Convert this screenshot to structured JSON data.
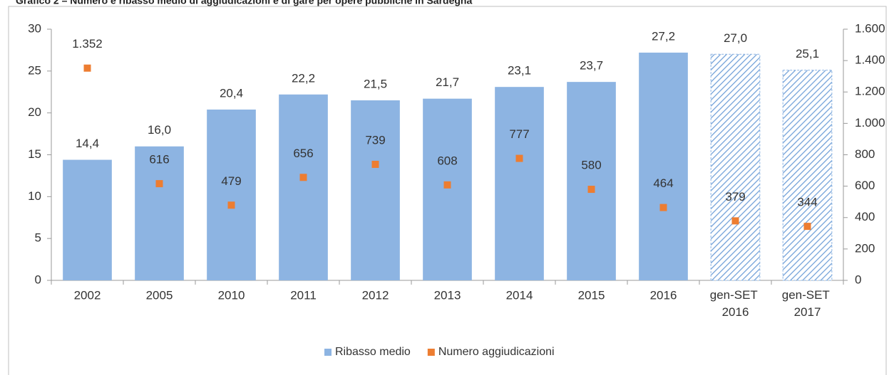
{
  "chart_data": {
    "type": "combo",
    "title": "Grafico 2 – Numero e ribasso medio di aggiudicazioni e di gare  per opere pubbliche in Sardegna",
    "categories": [
      "2002",
      "2005",
      "2010",
      "2011",
      "2012",
      "2013",
      "2014",
      "2015",
      "2016",
      "gen-SET 2016",
      "gen-SET 2017"
    ],
    "series": [
      {
        "name": "Ribasso medio",
        "type": "bar",
        "color": "#8db4e2",
        "values": [
          14.4,
          16.0,
          20.4,
          22.2,
          21.5,
          21.7,
          23.1,
          23.7,
          27.2,
          27.0,
          25.1
        ],
        "value_labels": [
          "14,4",
          "16,0",
          "20,4",
          "22,2",
          "21,5",
          "21,7",
          "23,1",
          "23,7",
          "27,2",
          "27,0",
          "25,1"
        ],
        "hatched": [
          false,
          false,
          false,
          false,
          false,
          false,
          false,
          false,
          false,
          true,
          true
        ]
      },
      {
        "name": "Numero aggiudicazioni",
        "type": "marker",
        "color": "#ed7d31",
        "axis": "y2",
        "values": [
          1352,
          616,
          479,
          656,
          739,
          608,
          777,
          580,
          464,
          379,
          344
        ],
        "value_labels": [
          "1.352",
          "616",
          "479",
          "656",
          "739",
          "608",
          "777",
          "580",
          "464",
          "379",
          "344"
        ]
      }
    ],
    "ylim": [
      0,
      30
    ],
    "yticks": [
      0,
      5,
      10,
      15,
      20,
      25,
      30
    ],
    "y2lim": [
      0,
      1600
    ],
    "y2ticks": [
      0,
      200,
      400,
      600,
      800,
      {
        "value": 1000,
        "label": "1.000"
      },
      {
        "value": 1200,
        "label": "1.200"
      },
      {
        "value": 1400,
        "label": "1.400"
      },
      {
        "value": 1600,
        "label": "1.600"
      }
    ],
    "grid": false,
    "legend": "bottom"
  }
}
